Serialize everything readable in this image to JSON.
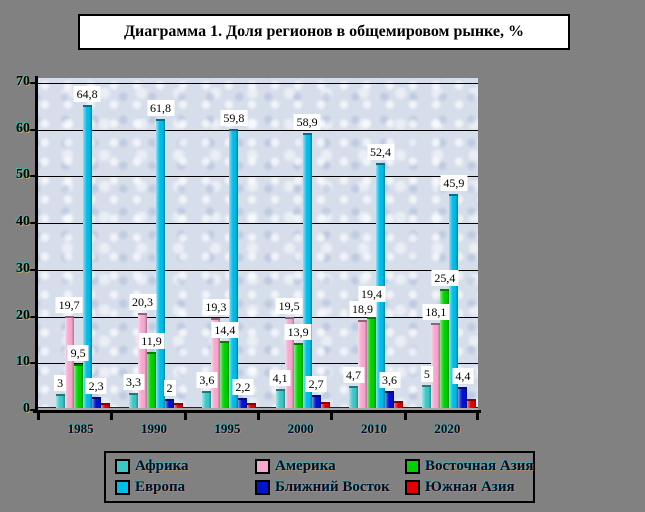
{
  "title": "Диаграмма 1. Доля регионов в общемировом рынке, %",
  "colors": {
    "page_bg": "#818181",
    "plot_bg": "#d6deeb",
    "gridline": "#000000",
    "title_bg": "#ffffff",
    "data_label_bg": "#ffffff"
  },
  "y_axis": {
    "tick_labels": [
      "0",
      "10",
      "20",
      "30",
      "40",
      "50",
      "60",
      "70"
    ]
  },
  "x_axis": {
    "category_labels": [
      "1985",
      "1990",
      "1995",
      "2000",
      "2010",
      "2020"
    ]
  },
  "legend": {
    "rows": 2,
    "columns": 3,
    "items": [
      {
        "key": "africa",
        "label": "Африка",
        "color": "#3cc7c7"
      },
      {
        "key": "america",
        "label": "Америка",
        "color": "#f7a6cd"
      },
      {
        "key": "east-asia",
        "label": "Восточная Азия",
        "color": "#00d200"
      },
      {
        "key": "europe",
        "label": "Европа",
        "color": "#00bce8"
      },
      {
        "key": "middle-east",
        "label": "Ближний Восток",
        "color": "#0013cf"
      },
      {
        "key": "south-asia",
        "label": "Южная Азия",
        "color": "#e40000"
      }
    ]
  },
  "chart_data": {
    "type": "bar",
    "title": "Диаграмма 1. Доля регионов в общемировом рынке, %",
    "categories": [
      "1985",
      "1990",
      "1995",
      "2000",
      "2010",
      "2020"
    ],
    "series": [
      {
        "key": "africa",
        "name": "Африка",
        "color": "#3cc7c7",
        "values": [
          3,
          3.3,
          3.6,
          4.1,
          4.7,
          5
        ],
        "labels": [
          "3",
          "3,3",
          "3,6",
          "4,1",
          "4,7",
          "5"
        ]
      },
      {
        "key": "america",
        "name": "Америка",
        "color": "#f7a6cd",
        "values": [
          19.7,
          20.3,
          19.3,
          19.5,
          18.9,
          18.1
        ],
        "labels": [
          "19,7",
          "20,3",
          "19,3",
          "19,5",
          "18,9",
          "18,1"
        ]
      },
      {
        "key": "east-asia",
        "name": "Восточная Азия",
        "color": "#00d200",
        "values": [
          9.5,
          11.9,
          14.4,
          13.9,
          19.4,
          25.4
        ],
        "labels": [
          "9,5",
          "11,9",
          "14,4",
          "13,9",
          "19,4",
          "25,4"
        ]
      },
      {
        "key": "europe",
        "name": "Европа",
        "color": "#00bce8",
        "values": [
          64.8,
          61.8,
          59.8,
          58.9,
          52.4,
          45.9
        ],
        "labels": [
          "64,8",
          "61,8",
          "59,8",
          "58,9",
          "52,4",
          "45,9"
        ]
      },
      {
        "key": "middle-east",
        "name": "Ближний Восток",
        "color": "#0013cf",
        "values": [
          2.3,
          2,
          2.2,
          2.7,
          3.6,
          4.4
        ],
        "labels": [
          "2,3",
          "2",
          "2,2",
          "2,7",
          "3,6",
          "4,4"
        ]
      },
      {
        "key": "south-asia",
        "name": "Южная Азия",
        "color": "#e40000",
        "values": [
          1,
          1,
          1,
          1.2,
          1.5,
          2
        ],
        "labels": [
          "",
          "",
          "",
          "",
          "",
          ""
        ]
      }
    ],
    "ylim": [
      0,
      70
    ],
    "y_ticks": [
      0,
      10,
      20,
      30,
      40,
      50,
      60,
      70
    ],
    "grid": true,
    "legend_position": "bottom",
    "data_labels": "shown for all series except Южная Азия (values estimated from bar heights)"
  }
}
